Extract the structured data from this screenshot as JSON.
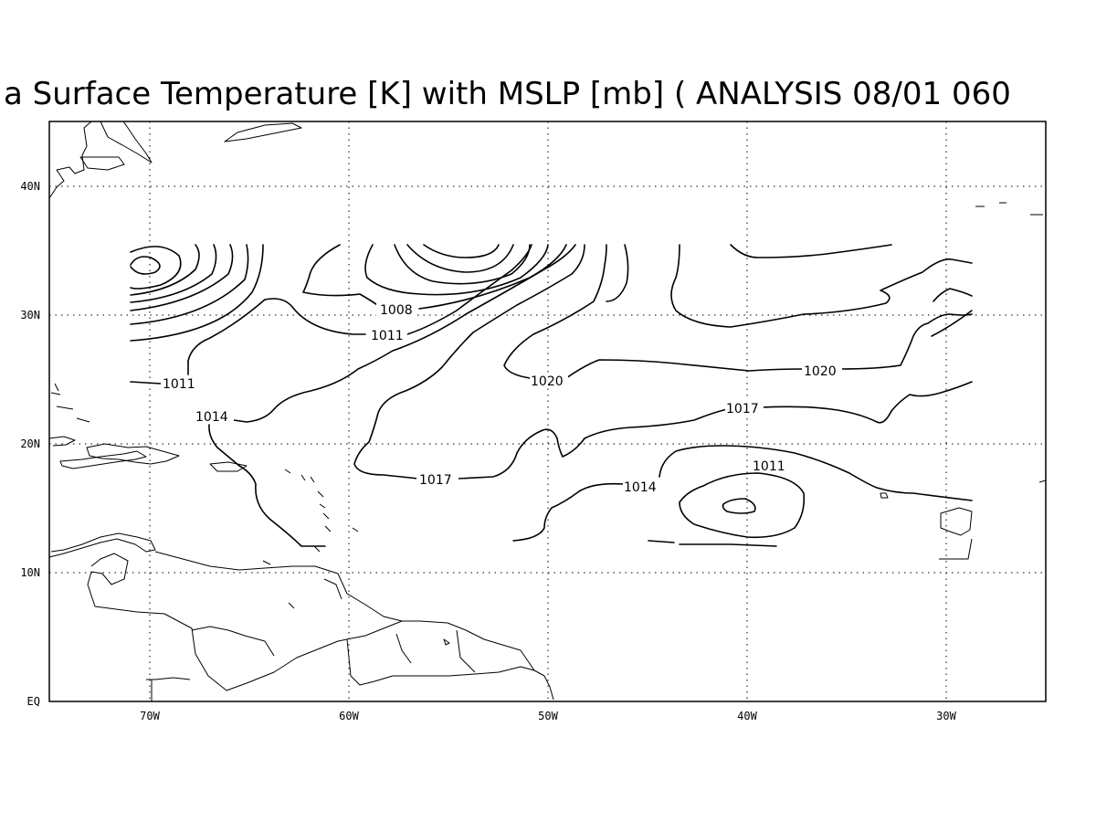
{
  "title": "a Surface Temperature [K] with MSLP [mb] ( ANALYSIS 08/01 060",
  "map": {
    "region": {
      "lon_min": -75,
      "lon_max": -25,
      "lat_min": 0,
      "lat_max": 45
    },
    "xticks": [
      {
        "lon": -70,
        "label": "70W"
      },
      {
        "lon": -60,
        "label": "60W"
      },
      {
        "lon": -50,
        "label": "50W"
      },
      {
        "lon": -40,
        "label": "40W"
      },
      {
        "lon": -30,
        "label": "30W"
      }
    ],
    "yticks": [
      {
        "lat": 0,
        "label": "EQ"
      },
      {
        "lat": 10,
        "label": "10N"
      },
      {
        "lat": 20,
        "label": "20N"
      },
      {
        "lat": 30,
        "label": "30N"
      },
      {
        "lat": 40,
        "label": "40N"
      }
    ],
    "grid": "dotted",
    "contour_variable": "MSLP",
    "contour_units": "mb",
    "contour_labels": [
      {
        "value": "1008",
        "lon": -52.5,
        "lat": 30.4
      },
      {
        "value": "1011",
        "lon": -56.7,
        "lat": 28.2
      },
      {
        "value": "1011",
        "lon": -71.8,
        "lat": 24.8
      },
      {
        "value": "1014",
        "lon": -69.3,
        "lat": 22.0
      },
      {
        "value": "1020",
        "lon": -48.0,
        "lat": 24.9
      },
      {
        "value": "1020",
        "lon": -36.2,
        "lat": 25.8
      },
      {
        "value": "1017",
        "lon": -39.9,
        "lat": 22.8
      },
      {
        "value": "1017",
        "lon": -53.7,
        "lat": 17.3
      },
      {
        "value": "1011",
        "lon": -38.8,
        "lat": 18.3
      },
      {
        "value": "1014",
        "lon": -44.8,
        "lat": 16.7
      }
    ]
  }
}
